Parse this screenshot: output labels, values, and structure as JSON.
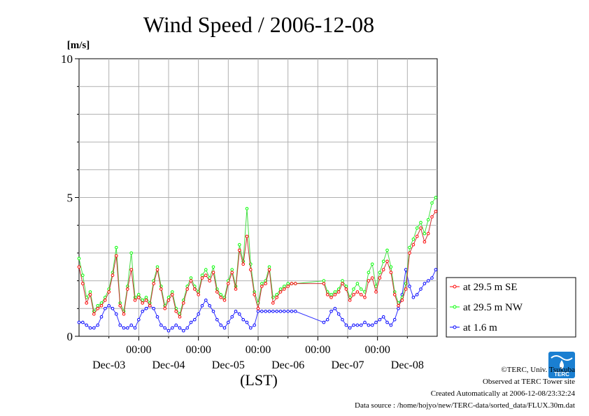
{
  "chart_data": {
    "type": "line",
    "title": "Wind Speed / 2006-12-08",
    "yunit": "[m/s]",
    "xlabel": "(LST)",
    "ylim": [
      0,
      10
    ],
    "yticks": [
      0,
      5,
      10
    ],
    "x_range_days": [
      0,
      6
    ],
    "time_tick_label": "00:00",
    "day_labels": [
      "Dec-03",
      "Dec-04",
      "Dec-05",
      "Dec-06",
      "Dec-07",
      "Dec-08"
    ],
    "grid": true,
    "legend_position": "right",
    "series": [
      {
        "name": "at 29.5 m SE",
        "color": "#ff0000",
        "x": [
          0.0,
          0.0625,
          0.125,
          0.1875,
          0.25,
          0.3125,
          0.375,
          0.4375,
          0.5,
          0.5625,
          0.625,
          0.6875,
          0.75,
          0.8125,
          0.875,
          0.9375,
          1.0,
          1.0625,
          1.125,
          1.1875,
          1.25,
          1.3125,
          1.375,
          1.4375,
          1.5,
          1.5625,
          1.625,
          1.6875,
          1.75,
          1.8125,
          1.875,
          1.9375,
          2.0,
          2.0625,
          2.125,
          2.1875,
          2.25,
          2.3125,
          2.375,
          2.4375,
          2.5,
          2.5625,
          2.625,
          2.6875,
          2.75,
          2.8125,
          2.875,
          2.9375,
          3.0,
          3.0625,
          3.125,
          3.1875,
          3.25,
          3.3125,
          3.375,
          3.4375,
          3.5,
          3.5625,
          3.625,
          4.1,
          4.1625,
          4.225,
          4.2875,
          4.35,
          4.4125,
          4.475,
          4.5375,
          4.6,
          4.6625,
          4.725,
          4.7875,
          4.85,
          4.9125,
          4.975,
          5.0375,
          5.1,
          5.1625,
          5.225,
          5.2875,
          5.35,
          5.4125,
          5.475,
          5.5375,
          5.6,
          5.6625,
          5.725,
          5.7875,
          5.85,
          5.9125,
          5.975
        ],
        "values": [
          2.5,
          1.9,
          1.2,
          1.5,
          0.8,
          1.0,
          1.1,
          1.3,
          1.6,
          2.2,
          2.9,
          1.1,
          0.8,
          1.7,
          2.4,
          1.3,
          1.4,
          1.2,
          1.3,
          1.1,
          1.9,
          2.4,
          1.7,
          1.0,
          1.3,
          1.5,
          0.9,
          0.7,
          1.2,
          1.7,
          2.0,
          1.7,
          1.5,
          2.1,
          2.2,
          2.0,
          2.3,
          1.6,
          1.4,
          1.3,
          1.9,
          2.3,
          1.7,
          3.1,
          2.6,
          3.6,
          2.4,
          1.5,
          1.0,
          1.8,
          1.9,
          2.4,
          1.2,
          1.4,
          1.6,
          1.7,
          1.8,
          1.9,
          1.9,
          1.9,
          1.5,
          1.4,
          1.5,
          1.6,
          1.9,
          1.7,
          1.3,
          1.5,
          1.6,
          1.5,
          1.4,
          2.0,
          2.1,
          1.6,
          2.1,
          2.4,
          2.7,
          2.3,
          1.5,
          1.1,
          1.3,
          1.7,
          3.0,
          3.3,
          3.6,
          3.9,
          3.4,
          3.7,
          4.3,
          4.5
        ],
        "values_note": ""
      },
      {
        "name": "at 29.5 m NW",
        "color": "#00ff00",
        "x": [
          0.0,
          0.0625,
          0.125,
          0.1875,
          0.25,
          0.3125,
          0.375,
          0.4375,
          0.5,
          0.5625,
          0.625,
          0.6875,
          0.75,
          0.8125,
          0.875,
          0.9375,
          1.0,
          1.0625,
          1.125,
          1.1875,
          1.25,
          1.3125,
          1.375,
          1.4375,
          1.5,
          1.5625,
          1.625,
          1.6875,
          1.75,
          1.8125,
          1.875,
          1.9375,
          2.0,
          2.0625,
          2.125,
          2.1875,
          2.25,
          2.3125,
          2.375,
          2.4375,
          2.5,
          2.5625,
          2.625,
          2.6875,
          2.75,
          2.8125,
          2.875,
          2.9375,
          3.0,
          3.0625,
          3.125,
          3.1875,
          3.25,
          3.3125,
          3.375,
          3.4375,
          3.5,
          3.5625,
          3.625,
          4.1,
          4.1625,
          4.225,
          4.2875,
          4.35,
          4.4125,
          4.475,
          4.5375,
          4.6,
          4.6625,
          4.725,
          4.7875,
          4.85,
          4.9125,
          4.975,
          5.0375,
          5.1,
          5.1625,
          5.225,
          5.2875,
          5.35,
          5.4125,
          5.475,
          5.5375,
          5.6,
          5.6625,
          5.725,
          5.7875,
          5.85,
          5.9125,
          5.975
        ],
        "values": [
          2.8,
          2.2,
          1.4,
          1.6,
          0.9,
          1.1,
          1.2,
          1.4,
          1.7,
          2.3,
          3.2,
          1.2,
          0.9,
          1.8,
          3.0,
          1.4,
          1.5,
          1.3,
          1.4,
          1.2,
          2.0,
          2.5,
          1.8,
          1.1,
          1.4,
          1.6,
          1.0,
          0.8,
          1.3,
          1.8,
          2.1,
          1.8,
          1.6,
          2.2,
          2.4,
          2.1,
          2.5,
          1.7,
          1.5,
          1.4,
          2.0,
          2.4,
          1.8,
          3.3,
          2.7,
          4.6,
          2.6,
          1.6,
          1.2,
          1.9,
          2.0,
          2.5,
          1.4,
          1.5,
          1.7,
          1.8,
          1.9,
          1.9,
          1.9,
          2.0,
          1.6,
          1.5,
          1.6,
          1.7,
          2.0,
          1.8,
          1.4,
          1.7,
          1.9,
          1.7,
          1.6,
          2.3,
          2.6,
          1.8,
          2.3,
          2.7,
          3.1,
          2.5,
          1.6,
          1.2,
          1.4,
          1.9,
          3.2,
          3.5,
          3.9,
          4.1,
          3.7,
          4.2,
          4.8,
          5.0
        ],
        "values_note": ""
      },
      {
        "name": "at 1.6 m",
        "color": "#0000ff",
        "x": [
          0.0,
          0.0625,
          0.125,
          0.1875,
          0.25,
          0.3125,
          0.375,
          0.4375,
          0.5,
          0.5625,
          0.625,
          0.6875,
          0.75,
          0.8125,
          0.875,
          0.9375,
          1.0,
          1.0625,
          1.125,
          1.1875,
          1.25,
          1.3125,
          1.375,
          1.4375,
          1.5,
          1.5625,
          1.625,
          1.6875,
          1.75,
          1.8125,
          1.875,
          1.9375,
          2.0,
          2.0625,
          2.125,
          2.1875,
          2.25,
          2.3125,
          2.375,
          2.4375,
          2.5,
          2.5625,
          2.625,
          2.6875,
          2.75,
          2.8125,
          2.875,
          2.9375,
          3.0,
          3.0625,
          3.125,
          3.1875,
          3.25,
          3.3125,
          3.375,
          3.4375,
          3.5,
          3.5625,
          3.625,
          4.1,
          4.1625,
          4.225,
          4.2875,
          4.35,
          4.4125,
          4.475,
          4.5375,
          4.6,
          4.6625,
          4.725,
          4.7875,
          4.85,
          4.9125,
          4.975,
          5.0375,
          5.1,
          5.1625,
          5.225,
          5.2875,
          5.35,
          5.4125,
          5.475,
          5.5375,
          5.6,
          5.6625,
          5.725,
          5.7875,
          5.85,
          5.9125,
          5.975
        ],
        "values": [
          0.5,
          0.5,
          0.4,
          0.3,
          0.3,
          0.4,
          0.7,
          1.0,
          1.1,
          1.0,
          0.8,
          0.4,
          0.3,
          0.3,
          0.4,
          0.3,
          0.6,
          0.9,
          1.0,
          1.1,
          1.0,
          0.7,
          0.4,
          0.3,
          0.2,
          0.3,
          0.4,
          0.3,
          0.2,
          0.3,
          0.5,
          0.6,
          0.8,
          1.1,
          1.3,
          1.1,
          0.9,
          0.6,
          0.4,
          0.3,
          0.5,
          0.7,
          0.9,
          0.8,
          0.6,
          0.5,
          0.3,
          0.4,
          0.9,
          0.9,
          0.9,
          0.9,
          0.9,
          0.9,
          0.9,
          0.9,
          0.9,
          0.9,
          0.9,
          0.5,
          0.6,
          0.9,
          1.0,
          0.8,
          0.6,
          0.4,
          0.3,
          0.4,
          0.4,
          0.4,
          0.5,
          0.4,
          0.4,
          0.5,
          0.6,
          0.7,
          0.5,
          0.4,
          0.6,
          1.0,
          1.5,
          2.4,
          1.8,
          1.4,
          1.5,
          1.7,
          1.9,
          2.0,
          2.1,
          2.4
        ],
        "values_note": ""
      }
    ]
  },
  "footer": {
    "copyright": "©TERC, Univ. Tsukuba",
    "site": "Observed at TERC Tower site",
    "created": "Created Automatically at 2006-12-08/23:32:24",
    "source": "Data source : /home/hojyo/new/TERC-data/sorted_data/FLUX.30m.dat"
  },
  "logo": {
    "text": "TERC",
    "color": "#1a7fd1"
  }
}
